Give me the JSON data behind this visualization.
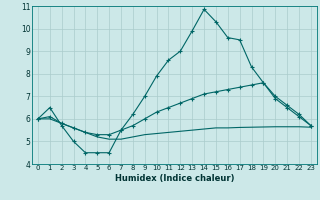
{
  "xlabel": "Humidex (Indice chaleur)",
  "ylabel": "",
  "background_color": "#cce8e8",
  "grid_color": "#aacccc",
  "line_color": "#006666",
  "xlim": [
    -0.5,
    23.5
  ],
  "ylim": [
    4,
    11
  ],
  "xticks": [
    0,
    1,
    2,
    3,
    4,
    5,
    6,
    7,
    8,
    9,
    10,
    11,
    12,
    13,
    14,
    15,
    16,
    17,
    18,
    19,
    20,
    21,
    22,
    23
  ],
  "yticks": [
    4,
    5,
    6,
    7,
    8,
    9,
    10,
    11
  ],
  "line1_x": [
    0,
    1,
    2,
    3,
    4,
    5,
    6,
    7,
    8,
    9,
    10,
    11,
    12,
    13,
    14,
    15,
    16,
    17,
    18,
    19,
    20,
    21,
    22,
    23
  ],
  "line1_y": [
    6.0,
    6.5,
    5.7,
    5.0,
    4.5,
    4.5,
    4.5,
    5.5,
    6.2,
    7.0,
    7.9,
    8.6,
    9.0,
    9.9,
    10.85,
    10.3,
    9.6,
    9.5,
    8.3,
    7.6,
    6.9,
    6.5,
    6.1,
    5.7
  ],
  "line2_x": [
    0,
    1,
    2,
    3,
    4,
    5,
    6,
    7,
    8,
    9,
    10,
    11,
    12,
    13,
    14,
    15,
    16,
    17,
    18,
    19,
    20,
    21,
    22,
    23
  ],
  "line2_y": [
    6.0,
    6.1,
    5.8,
    5.6,
    5.4,
    5.3,
    5.3,
    5.5,
    5.7,
    6.0,
    6.3,
    6.5,
    6.7,
    6.9,
    7.1,
    7.2,
    7.3,
    7.4,
    7.5,
    7.6,
    7.0,
    6.6,
    6.2,
    5.7
  ],
  "line3_x": [
    0,
    1,
    2,
    3,
    4,
    5,
    6,
    7,
    8,
    9,
    10,
    11,
    12,
    13,
    14,
    15,
    16,
    17,
    18,
    19,
    20,
    21,
    22,
    23
  ],
  "line3_y": [
    6.0,
    6.0,
    5.8,
    5.6,
    5.4,
    5.2,
    5.1,
    5.1,
    5.2,
    5.3,
    5.35,
    5.4,
    5.45,
    5.5,
    5.55,
    5.6,
    5.6,
    5.62,
    5.63,
    5.64,
    5.65,
    5.65,
    5.65,
    5.63
  ],
  "tick_fontsize": 5,
  "xlabel_fontsize": 6
}
